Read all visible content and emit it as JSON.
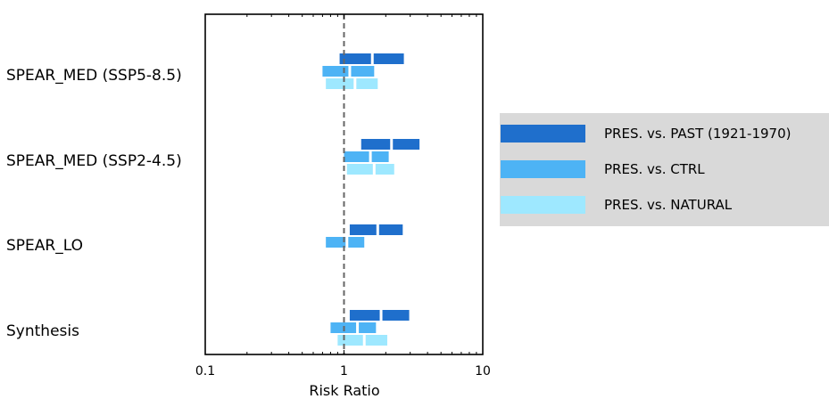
{
  "chart_data": {
    "type": "interval",
    "xlabel": "Risk Ratio",
    "xscale": "log",
    "xlim": [
      0.1,
      10
    ],
    "xticks": [
      {
        "value": 0.1,
        "label": "0.1"
      },
      {
        "value": 1,
        "label": "1"
      },
      {
        "value": 10,
        "label": "10"
      }
    ],
    "reference_line": {
      "x": 1,
      "style": "dashed",
      "color": "#666666"
    },
    "grid": false,
    "legend_position": "right",
    "categories": [
      "SPEAR_MED (SSP5-8.5)",
      "SPEAR_MED (SSP2-4.5)",
      "SPEAR_LO",
      "Synthesis"
    ],
    "series": [
      {
        "name": "PRES. vs. PAST (1921-1970)",
        "color": "#1f6fcc",
        "data": [
          {
            "category": "SPEAR_MED (SSP5-8.5)",
            "low": 0.93,
            "best": 1.6,
            "high": 2.7
          },
          {
            "category": "SPEAR_MED (SSP2-4.5)",
            "low": 1.33,
            "best": 2.2,
            "high": 3.5
          },
          {
            "category": "SPEAR_LO",
            "low": 1.1,
            "best": 1.75,
            "high": 2.65
          },
          {
            "category": "Synthesis",
            "low": 1.1,
            "best": 1.85,
            "high": 2.95
          }
        ]
      },
      {
        "name": "PRES. vs. CTRL",
        "color": "#4db3f5",
        "data": [
          {
            "category": "SPEAR_MED (SSP5-8.5)",
            "low": 0.7,
            "best": 1.1,
            "high": 1.65
          },
          {
            "category": "SPEAR_MED (SSP2-4.5)",
            "low": 1.0,
            "best": 1.55,
            "high": 2.1
          },
          {
            "category": "SPEAR_LO",
            "low": 0.74,
            "best": 1.05,
            "high": 1.4
          },
          {
            "category": "Synthesis",
            "low": 0.8,
            "best": 1.25,
            "high": 1.7
          }
        ]
      },
      {
        "name": "PRES. vs. NATURAL",
        "color": "#9ee8ff",
        "data": [
          {
            "category": "SPEAR_MED (SSP5-8.5)",
            "low": 0.74,
            "best": 1.2,
            "high": 1.75
          },
          {
            "category": "SPEAR_MED (SSP2-4.5)",
            "low": 1.05,
            "best": 1.65,
            "high": 2.3
          },
          {
            "category": "SPEAR_LO",
            "low": null,
            "best": null,
            "high": null
          },
          {
            "category": "Synthesis",
            "low": 0.9,
            "best": 1.4,
            "high": 2.05
          }
        ]
      }
    ]
  }
}
